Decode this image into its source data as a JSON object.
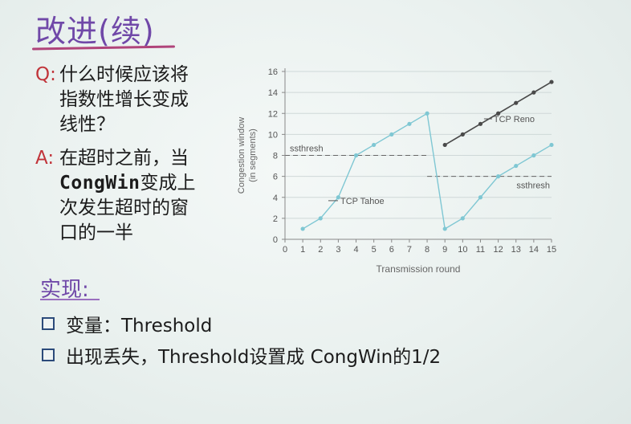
{
  "slide": {
    "title": "改进(续)",
    "question_mark": "Q:",
    "question_lines": [
      "什么时候应该将",
      "指数性增长变成",
      "线性？"
    ],
    "answer_mark": "A:",
    "answer_line1": "在超时之前，当",
    "answer_code": "CongWin",
    "answer_line2_rest": "变成上",
    "answer_lines_more": [
      "次发生超时的窗",
      "口的一半"
    ],
    "impl_heading": "实现:",
    "bullets": [
      "变量：Threshold",
      "出现丢失，Threshold设置成 CongWin的1/2"
    ]
  },
  "chart_data": {
    "type": "line",
    "xlabel": "Transmission round",
    "ylabel_line1": "Congestion window",
    "ylabel_line2": "(in segments)",
    "xlim": [
      0,
      15
    ],
    "ylim": [
      0,
      16
    ],
    "x_ticks": [
      0,
      1,
      2,
      3,
      4,
      5,
      6,
      7,
      8,
      9,
      10,
      11,
      12,
      13,
      14,
      15
    ],
    "y_ticks": [
      0,
      2,
      4,
      6,
      8,
      10,
      12,
      14,
      16
    ],
    "grid": "horizontal",
    "series": [
      {
        "name": "TCP Tahoe",
        "color": "#7fc7d3",
        "marker": "circle",
        "x": [
          1,
          2,
          3,
          4,
          5,
          6,
          7,
          8,
          9,
          10,
          11,
          12,
          13,
          14,
          15
        ],
        "y": [
          1,
          2,
          4,
          8,
          9,
          10,
          11,
          12,
          1,
          2,
          4,
          6,
          7,
          8,
          9
        ]
      },
      {
        "name": "TCP Reno",
        "color": "#4a4a4a",
        "marker": "circle",
        "x": [
          9,
          10,
          11,
          12,
          13,
          14,
          15
        ],
        "y": [
          9,
          10,
          11,
          12,
          13,
          14,
          15
        ]
      }
    ],
    "thresholds": [
      {
        "label": "ssthresh",
        "y": 8,
        "x_from": 0,
        "x_to": 8
      },
      {
        "label": "ssthresh",
        "y": 6,
        "x_from": 8,
        "x_to": 15
      }
    ],
    "annotations": [
      {
        "text": "TCP Reno",
        "at_x": 11.2,
        "at_y": 11.1
      },
      {
        "text": "TCP Tahoe",
        "at_x": 2.8,
        "at_y": 3.3
      }
    ]
  }
}
